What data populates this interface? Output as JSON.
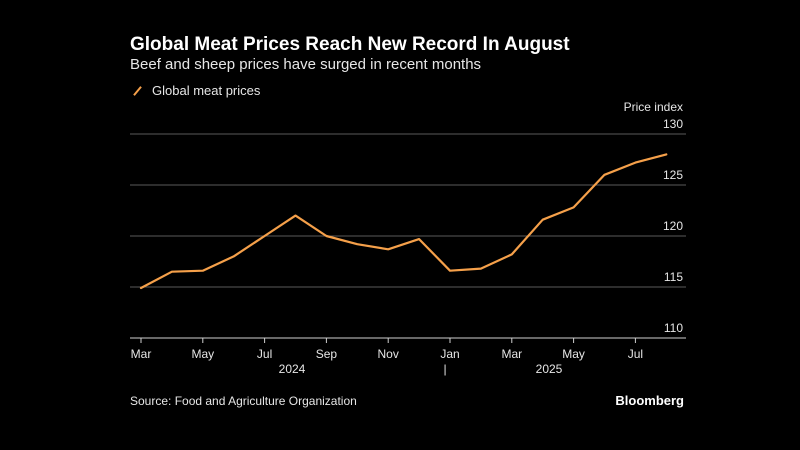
{
  "header": {
    "title": "Global Meat Prices Reach New Record In August",
    "subtitle": "Beef and sheep prices have surged in recent months"
  },
  "legend": {
    "label": "Global meat prices"
  },
  "footer": {
    "source": "Source: Food and Agriculture Organization",
    "brand": "Bloomberg"
  },
  "colors": {
    "line": "#f5a04a",
    "grid": "#5a5a5a",
    "text": "#e6e6e6"
  },
  "chart_data": {
    "type": "line",
    "title": "Global Meat Prices Reach New Record In August",
    "subtitle": "Beef and sheep prices have surged in recent months",
    "ylabel": "Price index",
    "ylim": [
      110,
      130
    ],
    "yticks": [
      110,
      115,
      120,
      125,
      130
    ],
    "x": [
      "2024-03",
      "2024-04",
      "2024-05",
      "2024-06",
      "2024-07",
      "2024-08",
      "2024-09",
      "2024-10",
      "2024-11",
      "2024-12",
      "2025-01",
      "2025-02",
      "2025-03",
      "2025-04",
      "2025-05",
      "2025-06",
      "2025-07",
      "2025-08"
    ],
    "xtick_labels": [
      "Mar",
      "May",
      "Jul",
      "Sep",
      "Nov",
      "Jan",
      "Mar",
      "May",
      "Jul"
    ],
    "year_labels": [
      "2024",
      "2025"
    ],
    "year_separator": "|",
    "series": [
      {
        "name": "Global meat prices",
        "values": [
          114.9,
          116.5,
          116.6,
          118.0,
          120.0,
          122.0,
          120.0,
          119.2,
          118.7,
          119.7,
          116.6,
          116.8,
          118.2,
          121.6,
          122.8,
          126.0,
          127.2,
          128.0
        ]
      }
    ],
    "grid": true,
    "legend_position": "top-left"
  }
}
